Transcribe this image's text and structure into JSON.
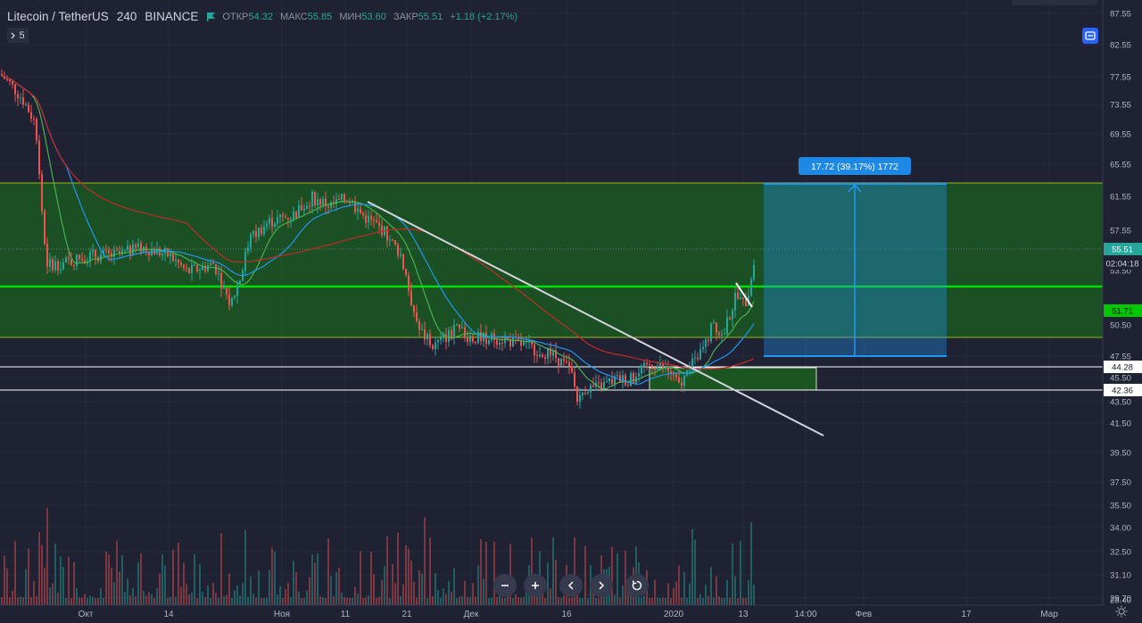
{
  "header": {
    "symbol": "Litecoin / TetherUS",
    "interval": "240",
    "exchange": "BINANCE",
    "open_label": "ОТКР",
    "open_value": "54.32",
    "high_label": "МАКС",
    "high_value": "55.85",
    "low_label": "МИН",
    "low_value": "53.60",
    "close_label": "ЗАКР",
    "close_value": "55.51",
    "change": "+1.18 (+2.17%)"
  },
  "collapse_count": "5",
  "price_axis": {
    "ticks": [
      "87.55",
      "82.55",
      "77.55",
      "73.55",
      "69.55",
      "65.55",
      "61.55",
      "57.55",
      "53.50",
      "50.50",
      "47.55",
      "45.50",
      "43.50",
      "41.50",
      "39.50",
      "37.50",
      "35.50",
      "34.00",
      "32.50",
      "31.10",
      "29.70",
      "28.40"
    ],
    "last_price": "55.51",
    "countdown": "02:04:18",
    "level_1": "51.71",
    "level_2": "44.28",
    "level_3": "42.36"
  },
  "time_axis": [
    "Окт",
    "14",
    "Ноя",
    "11",
    "21",
    "Дек",
    "16",
    "2020",
    "13",
    "14:00",
    "Фев",
    "17",
    "Мар"
  ],
  "measure_label": "17.72 (39.17%) 1772",
  "zoom_controls": [
    "zoom-out",
    "zoom-in",
    "scroll-left",
    "scroll-right",
    "reset"
  ],
  "colors": {
    "background": "#1e2233",
    "up": "#26a69a",
    "down": "#ef5350",
    "zone_fill": "#1b5e20",
    "zone_border": "#9cb81a",
    "level_line": "#00e000",
    "measure": "#2196f3",
    "trendline": "#d1d4dc",
    "ma_fast": "#4caf50",
    "ma_mid": "#2196f3",
    "ma_slow": "#c62828"
  }
}
